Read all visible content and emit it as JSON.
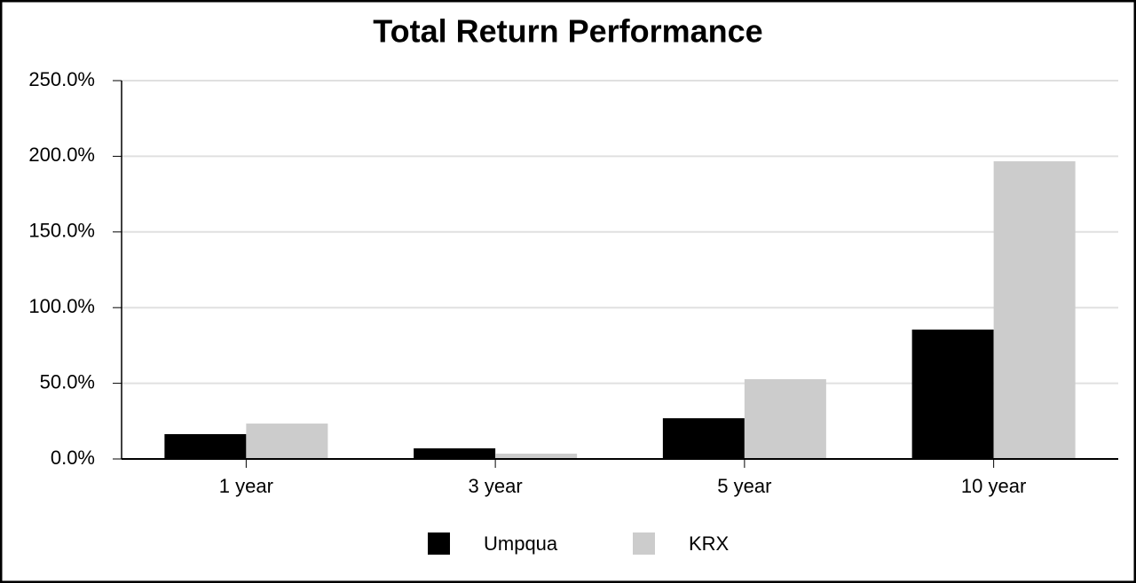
{
  "chart_data": {
    "type": "bar",
    "title": "Total Return Performance",
    "categories": [
      "1 year",
      "3 year",
      "5 year",
      "10 year"
    ],
    "series": [
      {
        "name": "Umpqua",
        "color": "#000000",
        "values": [
          16.4,
          7.0,
          26.9,
          85.5
        ]
      },
      {
        "name": "KRX",
        "color": "#cccccc",
        "values": [
          23.4,
          3.5,
          52.7,
          196.7
        ]
      }
    ],
    "ylim": [
      0,
      250
    ],
    "yticks": [
      {
        "value": 0,
        "label": "0.0%"
      },
      {
        "value": 50,
        "label": "50.0%"
      },
      {
        "value": 100,
        "label": "100.0%"
      },
      {
        "value": 150,
        "label": "150.0%"
      },
      {
        "value": 200,
        "label": "200.0%"
      },
      {
        "value": 250,
        "label": "250.0%"
      }
    ],
    "grid": true,
    "legend": "bottom"
  }
}
